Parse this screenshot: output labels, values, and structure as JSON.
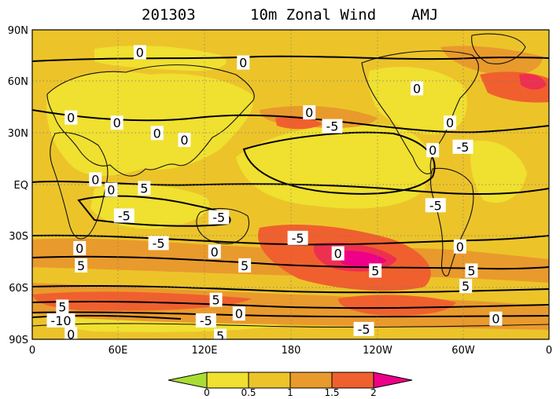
{
  "header": {
    "date": "201303",
    "variable": "10m Zonal Wind",
    "season": "AMJ"
  },
  "map": {
    "projection": "cylindrical equidistant",
    "lon_ticks": [
      "0",
      "60E",
      "120E",
      "180",
      "120W",
      "60W",
      "0"
    ],
    "lat_ticks": [
      "90N",
      "60N",
      "30N",
      "EQ",
      "30S",
      "60S",
      "90S"
    ],
    "shading_variable": "wind speed ratio (shaded)",
    "contour_labels": [
      {
        "text": "0",
        "lon": 75,
        "lat": 77
      },
      {
        "text": "0",
        "lon": 147,
        "lat": 71
      },
      {
        "text": "0",
        "lon": 27,
        "lat": 39
      },
      {
        "text": "0",
        "lon": 59,
        "lat": 36
      },
      {
        "text": "0",
        "lon": 87,
        "lat": 30
      },
      {
        "text": "0",
        "lon": 106,
        "lat": 26
      },
      {
        "text": "5",
        "lon": 78,
        "lat": -2
      },
      {
        "text": "0",
        "lon": 44,
        "lat": 3
      },
      {
        "text": "0",
        "lon": 55,
        "lat": -3
      },
      {
        "text": "-5",
        "lon": 64,
        "lat": -18
      },
      {
        "text": "-5",
        "lon": 130,
        "lat": -19
      },
      {
        "text": "-5",
        "lon": 88,
        "lat": -34
      },
      {
        "text": "0",
        "lon": 33,
        "lat": -37
      },
      {
        "text": "0",
        "lon": 127,
        "lat": -39
      },
      {
        "text": "5",
        "lon": 34,
        "lat": -47
      },
      {
        "text": "5",
        "lon": 148,
        "lat": -47
      },
      {
        "text": "0",
        "lon": 193,
        "lat": 42
      },
      {
        "text": "-5",
        "lon": 209,
        "lat": 34
      },
      {
        "text": "-5",
        "lon": 185,
        "lat": -31
      },
      {
        "text": "0",
        "lon": 213,
        "lat": -40
      },
      {
        "text": "5",
        "lon": 239,
        "lat": -50
      },
      {
        "text": "5",
        "lon": 128,
        "lat": -67
      },
      {
        "text": "0",
        "lon": 144,
        "lat": -75
      },
      {
        "text": "-5",
        "lon": 121,
        "lat": -79
      },
      {
        "text": "5",
        "lon": 131,
        "lat": -88
      },
      {
        "text": "5",
        "lon": 21,
        "lat": -71
      },
      {
        "text": "-10",
        "lon": 20,
        "lat": -79
      },
      {
        "text": "0",
        "lon": 27,
        "lat": -87
      },
      {
        "text": "-5",
        "lon": 231,
        "lat": -84
      },
      {
        "text": "0",
        "lon": 268,
        "lat": 56
      },
      {
        "text": "0",
        "lon": 291,
        "lat": 36
      },
      {
        "text": "0",
        "lon": 279,
        "lat": 20
      },
      {
        "text": "-5",
        "lon": 300,
        "lat": 22
      },
      {
        "text": "-5",
        "lon": 281,
        "lat": -12
      },
      {
        "text": "0",
        "lon": 298,
        "lat": -36
      },
      {
        "text": "5",
        "lon": 306,
        "lat": -50
      },
      {
        "text": "5",
        "lon": 302,
        "lat": -59
      },
      {
        "text": "0",
        "lon": 323,
        "lat": -78
      }
    ]
  },
  "colorbar": {
    "ticks": [
      "0",
      "0.5",
      "1",
      "1.5",
      "2"
    ],
    "colors": [
      "#aadd33",
      "#f0e030",
      "#ecc42a",
      "#e99a2c",
      "#f0602e",
      "#ee3050",
      "#ee0088"
    ]
  }
}
